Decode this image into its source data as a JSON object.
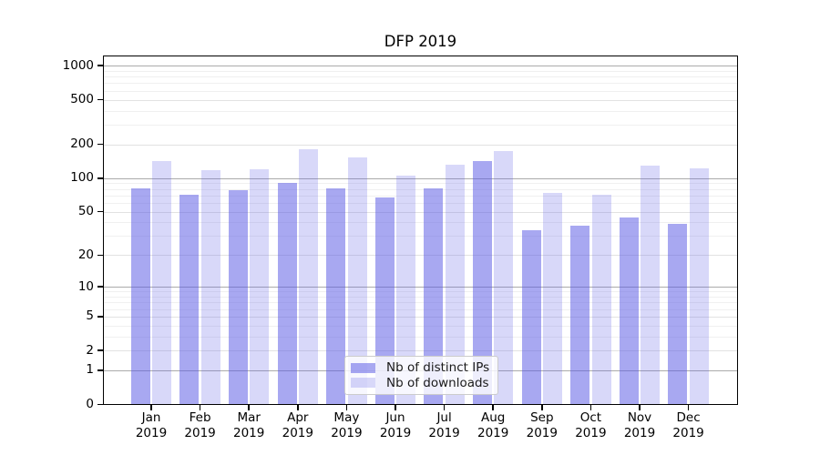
{
  "title": "DFP 2019",
  "chart_data": {
    "type": "bar",
    "title": "DFP 2019",
    "x_categories": [
      "Jan",
      "Feb",
      "Mar",
      "Apr",
      "May",
      "Jun",
      "Jul",
      "Aug",
      "Sep",
      "Oct",
      "Nov",
      "Dec"
    ],
    "x_year": "2019",
    "series": [
      {
        "name": "Nb of distinct IPs",
        "color": "rgba(90,90,229,0.53)",
        "values": [
          81,
          71,
          78,
          90,
          81,
          67,
          81,
          143,
          34,
          37,
          44,
          39
        ]
      },
      {
        "name": "Nb of downloads",
        "color": "rgba(90,90,229,0.24)",
        "values": [
          141,
          118,
          120,
          181,
          154,
          106,
          132,
          174,
          74,
          71,
          129,
          123
        ]
      }
    ],
    "y_axis": {
      "scale": "log1p",
      "ticks": [
        0,
        1,
        2,
        5,
        10,
        20,
        50,
        100,
        200,
        500,
        1000
      ],
      "top_value": 1255
    },
    "grid": {
      "major_lines": [
        1,
        10,
        100,
        1000
      ],
      "mid_lines": [
        2,
        5,
        20,
        50,
        200,
        500
      ],
      "minor_lines": [
        3,
        4,
        6,
        7,
        8,
        9,
        30,
        40,
        60,
        70,
        80,
        90,
        300,
        400,
        600,
        700,
        800,
        900
      ],
      "grid_on": true
    },
    "legend": {
      "position": "lower center",
      "entries": [
        "Nb of distinct IPs",
        "Nb of downloads"
      ]
    }
  },
  "colors": {
    "bar_distinct_ips": "rgba(90,90,229,0.53)",
    "bar_downloads": "rgba(90,90,229,0.24)",
    "grid_major": "#ababab",
    "grid_mid": "#e2e2e2",
    "grid_minor": "#f0f0f0",
    "axis": "#000000"
  }
}
